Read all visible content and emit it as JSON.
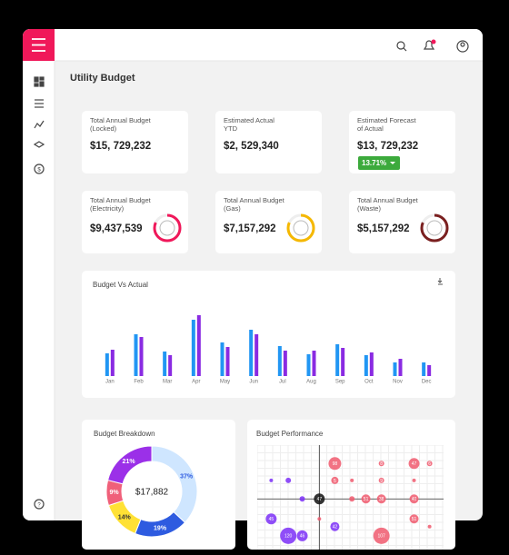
{
  "app": {
    "title": "Utility Budget"
  },
  "cards": [
    {
      "label_lines": [
        "Total Annual Budget",
        "(Locked)"
      ],
      "value": "$15, 729,232"
    },
    {
      "label_lines": [
        "Estimated Actual",
        "YTD"
      ],
      "value": "$2, 529,340"
    },
    {
      "label_lines": [
        "Estimated Forecast",
        "of Actual"
      ],
      "value": "$13, 729,232"
    },
    {
      "label_lines": [
        "Total Annual Budget",
        "(Electricity)"
      ],
      "value": "$9,437,539"
    },
    {
      "label_lines": [
        "Total Annual Budget",
        "(Gas)"
      ],
      "value": "$7,157,292"
    },
    {
      "label_lines": [
        "Total Annual Budget",
        "(Waste)"
      ],
      "value": "$5,157,292"
    }
  ],
  "badge": "13.71%",
  "chart_data": [
    {
      "type": "bar",
      "title": "Budget Vs Actual",
      "categories": [
        "Jan",
        "Feb",
        "Mar",
        "Apr",
        "May",
        "Jun",
        "Jul",
        "Aug",
        "Sep",
        "Oct",
        "Nov",
        "Dec"
      ],
      "series": [
        {
          "color": "#2196f3",
          "values": [
            25,
            46,
            27,
            62,
            37,
            51,
            33,
            24,
            35,
            23,
            15,
            15
          ]
        },
        {
          "color": "#8a2be2",
          "values": [
            29,
            43,
            23,
            67,
            32,
            46,
            28,
            28,
            31,
            26,
            19,
            12
          ]
        }
      ],
      "ylim": [
        0,
        70
      ]
    },
    {
      "type": "pie",
      "title": "Budget Breakdown",
      "center_label": "$17,882",
      "values": [
        37,
        19,
        14,
        9,
        21
      ],
      "value_labels": [
        "37%",
        "19%",
        "14%",
        "9%",
        "21%"
      ],
      "colors": [
        "#cfe6ff",
        "#2e5be0",
        "#ffe135",
        "#f0607a",
        "#9b30e8"
      ]
    },
    {
      "type": "scatter",
      "title": "Budget Performance",
      "xlim": [
        -4,
        8
      ],
      "ylim": [
        -3,
        3.5
      ],
      "x": [
        1,
        4,
        6.1,
        7.1,
        -3.1,
        -2,
        1,
        2.1,
        4,
        6.1,
        -1.1,
        0,
        2.1,
        3,
        4,
        6.1,
        -3.1,
        0,
        1,
        6.1,
        -2,
        -1.1,
        4,
        7.1
      ],
      "values": [
        2.3,
        2.3,
        2.3,
        2.3,
        1.2,
        1.2,
        1.2,
        1.2,
        1.2,
        1.2,
        0,
        0,
        0,
        0,
        0,
        0,
        -1.3,
        -1.3,
        -1.8,
        -1.3,
        -2.4,
        -2.4,
        -2.4,
        -1.8
      ],
      "sizes": [
        7,
        3,
        6,
        3,
        2,
        3,
        4,
        2,
        3,
        2,
        3,
        6,
        3,
        5,
        5,
        5,
        6,
        2,
        5,
        5,
        9,
        6,
        9,
        2
      ],
      "labels": [
        "98",
        "8",
        "47",
        "6",
        null,
        null,
        "5",
        null,
        "9",
        null,
        null,
        "47",
        null,
        "51",
        "38",
        "40",
        "45",
        null,
        "42",
        "51",
        "120",
        "46",
        "107",
        null
      ],
      "colors": [
        "#f05a6e",
        "#f05a6e",
        "#f05a6e",
        "#f05a6e",
        "#7b2ff7",
        "#7b2ff7",
        "#f05a6e",
        "#f05a6e",
        "#f05a6e",
        "#f05a6e",
        "#7b2ff7",
        "#111111",
        "#f05a6e",
        "#f05a6e",
        "#f05a6e",
        "#f05a6e",
        "#7b2ff7",
        "#f05a6e",
        "#7b2ff7",
        "#f05a6e",
        "#7b2ff7",
        "#7b2ff7",
        "#f05a6e",
        "#f05a6e"
      ]
    }
  ]
}
